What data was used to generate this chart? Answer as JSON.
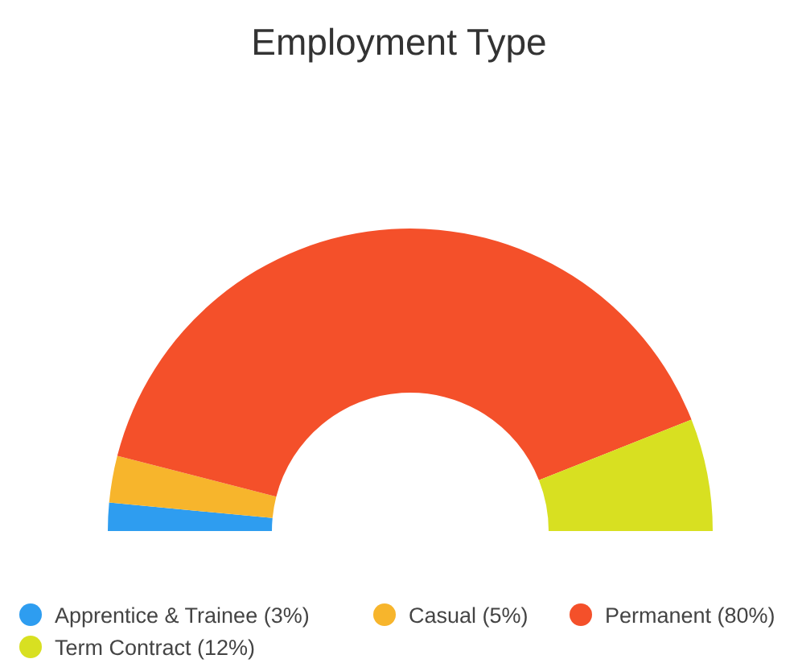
{
  "chart_data": {
    "type": "donut",
    "title": "Employment Type",
    "categories": [
      "Apprentice & Trainee (3%)",
      "Casual (5%)",
      "Permanent (80%)",
      "Term Contract (12%)"
    ],
    "values": [
      3,
      5,
      80,
      12
    ],
    "colors": [
      "#2e9df0",
      "#f7b52c",
      "#f4502a",
      "#d8e021"
    ],
    "legend": "bottom"
  }
}
